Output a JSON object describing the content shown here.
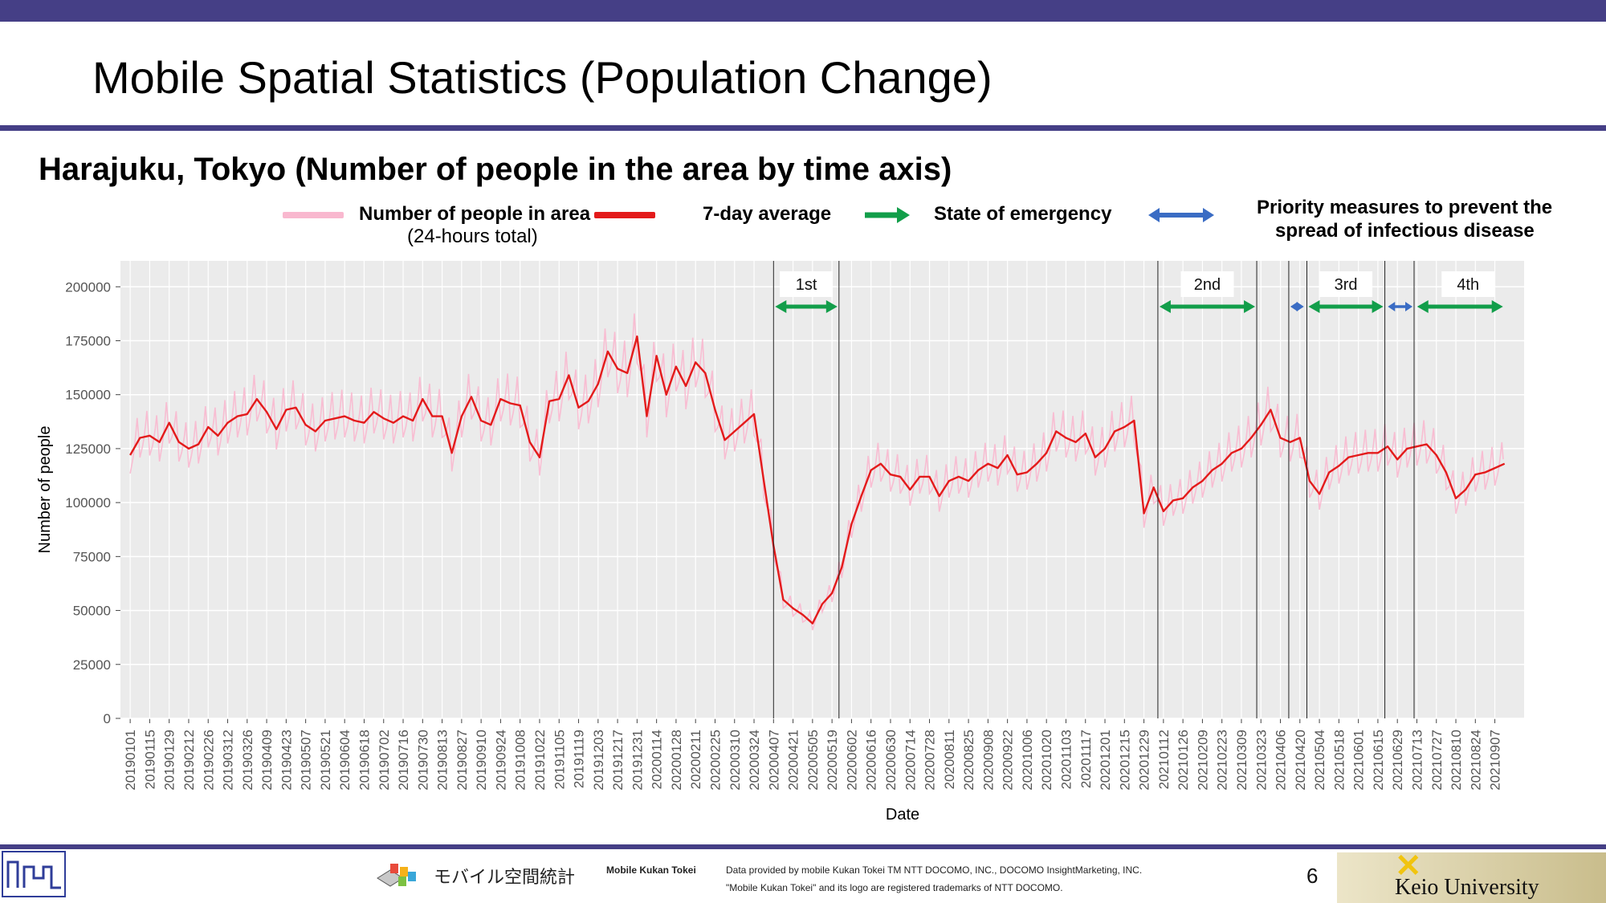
{
  "slide": {
    "title": "Mobile Spatial Statistics (Population Change)",
    "subtitle": "Harajuku, Tokyo (Number of people in the area by time axis)",
    "page_number": "6"
  },
  "legend": {
    "area": "Number of people in area",
    "area_note": "(24-hours total)",
    "avg": "7-day average",
    "emergency": "State of emergency",
    "priority_line1": "Priority measures to prevent the",
    "priority_line2": "spread of infectious disease",
    "colors": {
      "area": "#f9b8cf",
      "avg": "#e31b1b",
      "emergency": "#129e4a",
      "priority": "#3a6cc4"
    }
  },
  "footer": {
    "brand_jp": "モバイル空間統計",
    "brand_en": "Mobile Kukan Tokei",
    "credit_line1": "Data provided by mobile Kukan Tokei TM NTT DOCOMO, INC., DOCOMO InsightMarketing, INC.",
    "credit_line2": "\"Mobile Kukan Tokei\" and its logo are registered trademarks of NTT DOCOMO.",
    "university": "Keio University"
  },
  "chart_data": {
    "type": "line",
    "xlabel": "Date",
    "ylabel": "Number of people",
    "ylim": [
      0,
      212000
    ],
    "yticks": [
      0,
      25000,
      50000,
      75000,
      100000,
      125000,
      150000,
      175000,
      200000
    ],
    "grid": true,
    "legend_position": "top",
    "x_tick_labels": [
      "20190101",
      "20190115",
      "20190129",
      "20190212",
      "20190226",
      "20190312",
      "20190326",
      "20190409",
      "20190423",
      "20190507",
      "20190521",
      "20190604",
      "20190618",
      "20190702",
      "20190716",
      "20190730",
      "20190813",
      "20190827",
      "20190910",
      "20190924",
      "20191008",
      "20191022",
      "20191105",
      "20191119",
      "20191203",
      "20191217",
      "20191231",
      "20200114",
      "20200128",
      "20200211",
      "20200225",
      "20200310",
      "20200324",
      "20200407",
      "20200421",
      "20200505",
      "20200519",
      "20200602",
      "20200616",
      "20200630",
      "20200714",
      "20200728",
      "20200811",
      "20200825",
      "20200908",
      "20200922",
      "20201006",
      "20201020",
      "20201103",
      "20201117",
      "20201201",
      "20201215",
      "20201229",
      "20210112",
      "20210126",
      "20210209",
      "20210223",
      "20210309",
      "20210323",
      "20210406",
      "20210420",
      "20210504",
      "20210518",
      "20210601",
      "20210615",
      "20210629",
      "20210713",
      "20210727",
      "20210810",
      "20210824",
      "20210907"
    ],
    "series": [
      {
        "name": "7-day average",
        "points": [
          [
            "20190101",
            122000
          ],
          [
            "20190108",
            130000
          ],
          [
            "20190115",
            131000
          ],
          [
            "20190122",
            128000
          ],
          [
            "20190129",
            137000
          ],
          [
            "20190205",
            128000
          ],
          [
            "20190212",
            125000
          ],
          [
            "20190219",
            127000
          ],
          [
            "20190226",
            135000
          ],
          [
            "20190305",
            131000
          ],
          [
            "20190312",
            137000
          ],
          [
            "20190319",
            140000
          ],
          [
            "20190326",
            141000
          ],
          [
            "20190402",
            148000
          ],
          [
            "20190409",
            142000
          ],
          [
            "20190416",
            134000
          ],
          [
            "20190423",
            143000
          ],
          [
            "20190430",
            144000
          ],
          [
            "20190507",
            136000
          ],
          [
            "20190514",
            133000
          ],
          [
            "20190521",
            138000
          ],
          [
            "20190528",
            139000
          ],
          [
            "20190604",
            140000
          ],
          [
            "20190611",
            138000
          ],
          [
            "20190618",
            137000
          ],
          [
            "20190625",
            142000
          ],
          [
            "20190702",
            139000
          ],
          [
            "20190709",
            137000
          ],
          [
            "20190716",
            140000
          ],
          [
            "20190723",
            138000
          ],
          [
            "20190730",
            148000
          ],
          [
            "20190806",
            140000
          ],
          [
            "20190813",
            140000
          ],
          [
            "20190820",
            123000
          ],
          [
            "20190827",
            140000
          ],
          [
            "20190903",
            149000
          ],
          [
            "20190910",
            138000
          ],
          [
            "20190917",
            136000
          ],
          [
            "20190924",
            148000
          ],
          [
            "20191001",
            146000
          ],
          [
            "20191008",
            145000
          ],
          [
            "20191015",
            128000
          ],
          [
            "20191022",
            121000
          ],
          [
            "20191029",
            147000
          ],
          [
            "20191105",
            148000
          ],
          [
            "20191112",
            159000
          ],
          [
            "20191119",
            144000
          ],
          [
            "20191126",
            147000
          ],
          [
            "20191203",
            155000
          ],
          [
            "20191210",
            170000
          ],
          [
            "20191217",
            162000
          ],
          [
            "20191224",
            160000
          ],
          [
            "20191231",
            177000
          ],
          [
            "20200107",
            140000
          ],
          [
            "20200114",
            168000
          ],
          [
            "20200121",
            150000
          ],
          [
            "20200128",
            163000
          ],
          [
            "20200204",
            154000
          ],
          [
            "20200211",
            165000
          ],
          [
            "20200218",
            160000
          ],
          [
            "20200225",
            143000
          ],
          [
            "20200303",
            129000
          ],
          [
            "20200310",
            133000
          ],
          [
            "20200317",
            137000
          ],
          [
            "20200324",
            141000
          ],
          [
            "20200331",
            110000
          ],
          [
            "20200407",
            80000
          ],
          [
            "20200414",
            55000
          ],
          [
            "20200421",
            51000
          ],
          [
            "20200428",
            48000
          ],
          [
            "20200505",
            44000
          ],
          [
            "20200512",
            53000
          ],
          [
            "20200519",
            58000
          ],
          [
            "20200526",
            70000
          ],
          [
            "20200602",
            90000
          ],
          [
            "20200609",
            103000
          ],
          [
            "20200616",
            115000
          ],
          [
            "20200623",
            118000
          ],
          [
            "20200630",
            113000
          ],
          [
            "20200707",
            112000
          ],
          [
            "20200714",
            106000
          ],
          [
            "20200721",
            112000
          ],
          [
            "20200728",
            112000
          ],
          [
            "20200804",
            103000
          ],
          [
            "20200811",
            110000
          ],
          [
            "20200818",
            112000
          ],
          [
            "20200825",
            110000
          ],
          [
            "20200901",
            115000
          ],
          [
            "20200908",
            118000
          ],
          [
            "20200915",
            116000
          ],
          [
            "20200922",
            122000
          ],
          [
            "20200929",
            113000
          ],
          [
            "20201006",
            114000
          ],
          [
            "20201013",
            118000
          ],
          [
            "20201020",
            123000
          ],
          [
            "20201027",
            133000
          ],
          [
            "20201103",
            130000
          ],
          [
            "20201110",
            128000
          ],
          [
            "20201117",
            132000
          ],
          [
            "20201124",
            121000
          ],
          [
            "20201201",
            125000
          ],
          [
            "20201208",
            133000
          ],
          [
            "20201215",
            135000
          ],
          [
            "20201222",
            138000
          ],
          [
            "20201229",
            95000
          ],
          [
            "20210105",
            107000
          ],
          [
            "20210112",
            96000
          ],
          [
            "20210119",
            101000
          ],
          [
            "20210126",
            102000
          ],
          [
            "20210202",
            107000
          ],
          [
            "20210209",
            110000
          ],
          [
            "20210216",
            115000
          ],
          [
            "20210223",
            118000
          ],
          [
            "20210302",
            123000
          ],
          [
            "20210309",
            125000
          ],
          [
            "20210316",
            130000
          ],
          [
            "20210323",
            136000
          ],
          [
            "20210330",
            143000
          ],
          [
            "20210406",
            130000
          ],
          [
            "20210413",
            128000
          ],
          [
            "20210420",
            130000
          ],
          [
            "20210427",
            110000
          ],
          [
            "20210504",
            104000
          ],
          [
            "20210511",
            114000
          ],
          [
            "20210518",
            117000
          ],
          [
            "20210525",
            121000
          ],
          [
            "20210601",
            122000
          ],
          [
            "20210608",
            123000
          ],
          [
            "20210615",
            123000
          ],
          [
            "20210622",
            126000
          ],
          [
            "20210629",
            120000
          ],
          [
            "20210706",
            125000
          ],
          [
            "20210713",
            126000
          ],
          [
            "20210720",
            127000
          ],
          [
            "20210727",
            122000
          ],
          [
            "20210803",
            114000
          ],
          [
            "20210810",
            102000
          ],
          [
            "20210817",
            106000
          ],
          [
            "20210824",
            113000
          ],
          [
            "20210831",
            114000
          ],
          [
            "20210907",
            116000
          ],
          [
            "20210914",
            118000
          ]
        ]
      }
    ],
    "period_lines": [
      "20200407",
      "20200524",
      "20210108",
      "20210320",
      "20210412",
      "20210425",
      "20210620",
      "20210711"
    ],
    "periods": [
      {
        "label": "1st",
        "kind": "State of emergency",
        "start": "20200407",
        "end": "20200524"
      },
      {
        "label": "2nd",
        "kind": "State of emergency",
        "start": "20210108",
        "end": "20210320"
      },
      {
        "label": "",
        "kind": "Priority measures to prevent the spread of infectious disease",
        "start": "20210412",
        "end": "20210424"
      },
      {
        "label": "3rd",
        "kind": "State of emergency",
        "start": "20210425",
        "end": "20210620"
      },
      {
        "label": "",
        "kind": "Priority measures to prevent the spread of infectious disease",
        "start": "20210621",
        "end": "20210711"
      },
      {
        "label": "4th",
        "kind": "State of emergency",
        "start": "20210712",
        "end": "20210914"
      }
    ]
  }
}
